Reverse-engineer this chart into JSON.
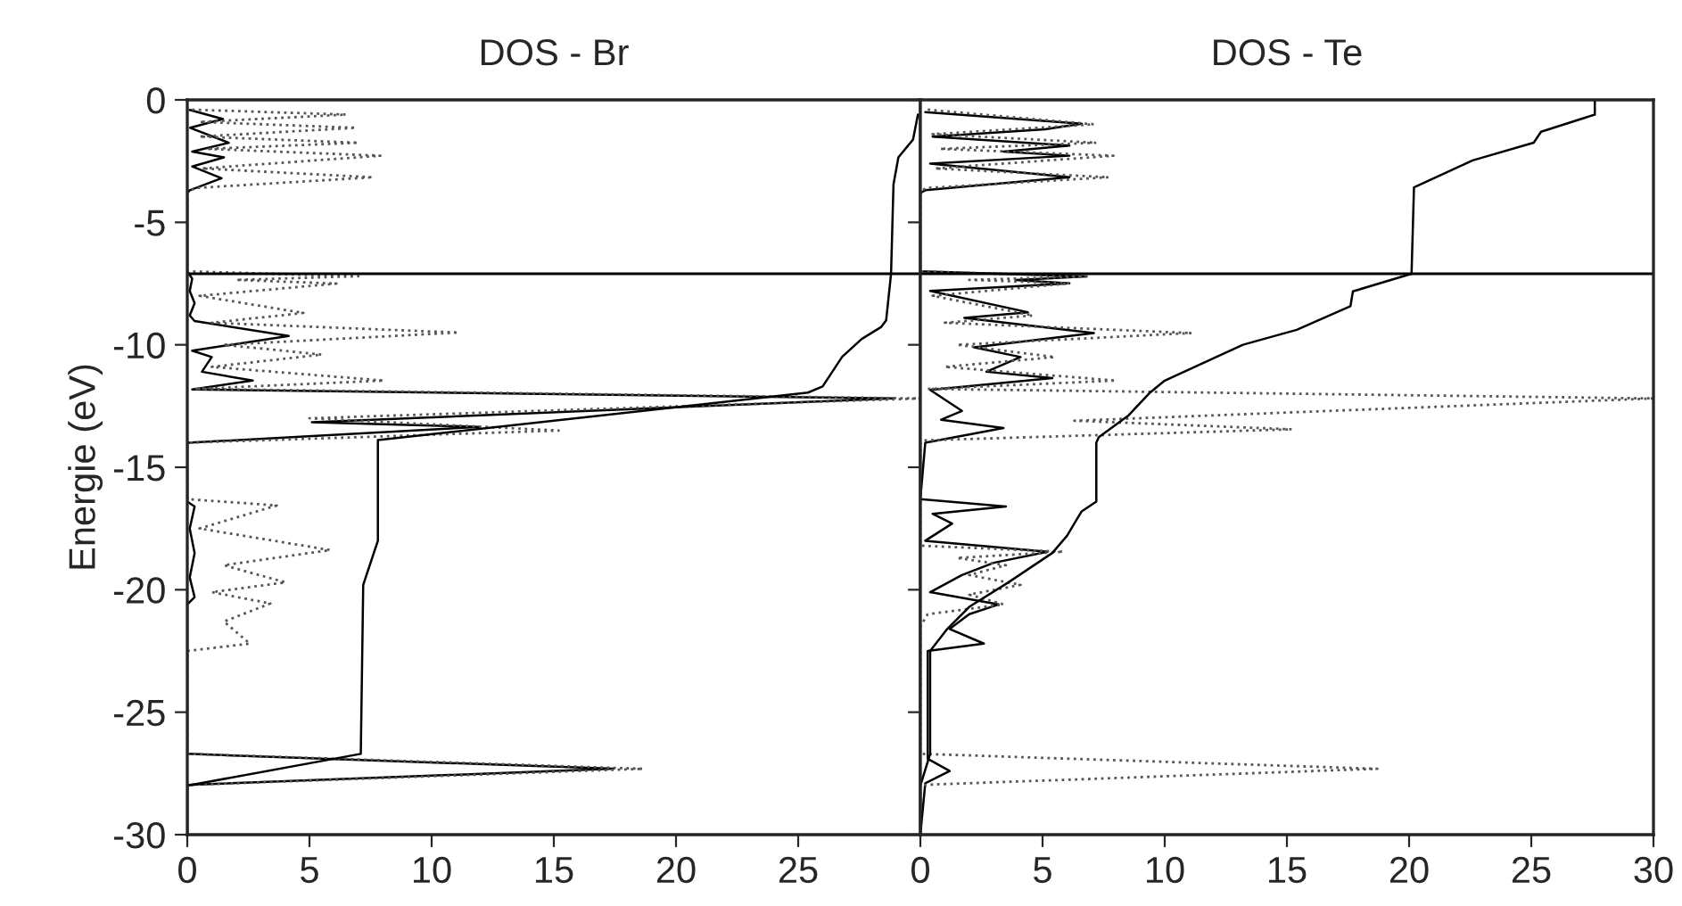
{
  "chart_data": [
    {
      "type": "line",
      "title": "DOS - Br",
      "ylabel": "Energie (eV)",
      "xlim": [
        0,
        30
      ],
      "xticks": [
        0,
        5,
        10,
        15,
        20,
        25
      ],
      "ylim": [
        -30,
        0
      ],
      "yticks": [
        0,
        -5,
        -10,
        -15,
        -20,
        -25,
        -30
      ],
      "grid": false,
      "legend": false,
      "ref_lines": [
        {
          "axis": "y",
          "value": -7.1,
          "color": "#000000"
        }
      ],
      "series": [
        {
          "color": "#000000",
          "line_style": "solid",
          "x": [
            0.1,
            1.46,
            0.12,
            1.7,
            0.2,
            1.5,
            0.2,
            1.4,
            0.1,
            0,
            0,
            0.2,
            0.1,
            0.3,
            0.1,
            0.3,
            4.15,
            0.2,
            1.0,
            0.6,
            2.68,
            0.2,
            28.9,
            5.1,
            11.95,
            0,
            0,
            0.3,
            0.1,
            0.3,
            0.1,
            0.3,
            0,
            0,
            17.44,
            0,
            0
          ],
          "values": [
            -0.41,
            -0.78,
            -1.14,
            -1.75,
            -2.11,
            -2.35,
            -2.72,
            -3.2,
            -3.69,
            -3.8,
            -7.0,
            -7.3,
            -7.8,
            -8.3,
            -8.8,
            -9.03,
            -9.64,
            -10.24,
            -10.5,
            -11.1,
            -11.46,
            -11.82,
            -12.19,
            -13.16,
            -13.35,
            -14.0,
            -16.4,
            -16.6,
            -17.5,
            -18.5,
            -19.5,
            -20.3,
            -20.6,
            -26.7,
            -27.31,
            -27.97,
            -30
          ]
        },
        {
          "color": "#555555",
          "line_style": "dotted",
          "x": [
            0.2,
            6.5,
            0.5,
            6.9,
            0.5,
            7.0,
            0.8,
            7.9,
            0.6,
            7.6,
            0.3,
            0,
            0,
            7.0,
            2.0,
            6.1,
            0.5,
            4.75,
            1.0,
            11.1,
            1.5,
            5.5,
            1.0,
            8.05,
            0.3,
            30,
            5.0,
            15.2,
            0,
            0,
            3.66,
            0.5,
            5.85,
            1.5,
            4.02,
            1.0,
            3.4,
            1.5,
            2.56,
            0,
            0,
            18.65,
            0,
            0
          ],
          "values": [
            -0.4,
            -0.6,
            -0.9,
            -1.14,
            -1.5,
            -1.75,
            -2.0,
            -2.28,
            -2.8,
            -3.16,
            -3.6,
            -3.8,
            -7.0,
            -7.2,
            -7.35,
            -7.5,
            -8.0,
            -8.7,
            -9.1,
            -9.5,
            -10.0,
            -10.4,
            -10.9,
            -11.46,
            -11.8,
            -12.19,
            -13.0,
            -13.5,
            -14.0,
            -16.3,
            -16.56,
            -17.5,
            -18.38,
            -19.0,
            -19.7,
            -20.1,
            -20.56,
            -21.3,
            -22.2,
            -22.5,
            -26.7,
            -27.31,
            -27.97,
            -30
          ]
        },
        {
          "color": "#000000",
          "line_style": "solid",
          "x": [
            29.9,
            29.7,
            29.1,
            28.9,
            28.8,
            28.6,
            28.4,
            27.6,
            26.8,
            26.0,
            25.4,
            7.8,
            7.8,
            7.2,
            7.1,
            0,
            0
          ],
          "values": [
            -0.6,
            -1.62,
            -2.35,
            -3.45,
            -7.1,
            -9.0,
            -9.27,
            -9.76,
            -10.49,
            -11.7,
            -11.95,
            -13.89,
            -18.0,
            -19.8,
            -26.7,
            -28.0,
            -30
          ]
        }
      ]
    },
    {
      "type": "line",
      "title": "DOS - Te",
      "xlim": [
        0,
        30
      ],
      "xticks": [
        0,
        5,
        10,
        15,
        20,
        25,
        30
      ],
      "ylim": [
        -30,
        0
      ],
      "yticks": [
        0,
        -5,
        -10,
        -15,
        -20,
        -25,
        -30
      ],
      "tick_labels": "x",
      "grid": false,
      "legend": false,
      "ref_lines": [
        {
          "axis": "y",
          "value": -7.1,
          "color": "#000000"
        }
      ],
      "series": [
        {
          "color": "#000000",
          "line_style": "solid",
          "x": [
            0.2,
            6.6,
            5.1,
            0.5,
            6.1,
            3.4,
            6.1,
            0.4,
            6.1,
            0.2,
            0,
            0,
            6.8,
            3.9,
            6.1,
            0.4,
            4.4,
            1.8,
            7.1,
            2.2,
            4.1,
            2.7,
            5.4,
            0.4,
            1.7,
            0.85,
            3.4,
            0.2,
            0,
            3.5,
            0.5,
            1.3,
            0.2,
            5.2,
            3.0,
            1.7,
            0.4,
            3.2,
            2.0,
            1.2,
            2.6,
            0.3,
            0.3,
            1.2,
            0.2,
            0
          ],
          "values": [
            -0.5,
            -0.97,
            -1.2,
            -1.5,
            -1.87,
            -2.11,
            -2.28,
            -2.6,
            -3.16,
            -3.69,
            -3.8,
            -7.0,
            -7.21,
            -7.35,
            -7.49,
            -7.8,
            -8.67,
            -8.9,
            -9.52,
            -10.1,
            -10.5,
            -11.1,
            -11.36,
            -11.84,
            -12.7,
            -13.06,
            -13.4,
            -14.0,
            -16.3,
            -16.6,
            -16.9,
            -17.3,
            -18.0,
            -18.45,
            -18.9,
            -19.4,
            -20.1,
            -20.6,
            -21.0,
            -21.6,
            -22.2,
            -22.5,
            -26.9,
            -27.4,
            -27.9,
            -30
          ]
        },
        {
          "color": "#555555",
          "line_style": "dotted",
          "x": [
            0.3,
            7.1,
            0.5,
            7.2,
            0.8,
            7.9,
            0.6,
            7.7,
            0.2,
            0,
            0,
            6.8,
            2.0,
            6.1,
            0.5,
            4.6,
            1.0,
            11.1,
            1.5,
            5.5,
            1.0,
            8.0,
            0.3,
            30,
            6.3,
            15.2,
            0.2,
            0,
            0,
            5.85,
            1.5,
            3.5,
            2.0,
            4.1,
            2.0,
            3.4,
            0.3,
            0,
            0,
            18.7,
            0,
            0
          ],
          "values": [
            -0.4,
            -1.0,
            -1.4,
            -1.75,
            -2.0,
            -2.28,
            -2.8,
            -3.16,
            -3.6,
            -3.8,
            -7.0,
            -7.21,
            -7.35,
            -7.49,
            -8.0,
            -8.8,
            -9.1,
            -9.52,
            -10.0,
            -10.5,
            -10.9,
            -11.46,
            -11.8,
            -12.19,
            -13.1,
            -13.45,
            -13.9,
            -14.0,
            -18.2,
            -18.45,
            -18.7,
            -19.0,
            -19.4,
            -19.8,
            -20.2,
            -20.6,
            -21.0,
            -21.5,
            -26.7,
            -27.31,
            -27.97,
            -30
          ]
        },
        {
          "color": "#000000",
          "line_style": "solid",
          "x": [
            27.6,
            27.6,
            25.4,
            25.1,
            22.6,
            20.2,
            20.1,
            17.7,
            17.6,
            15.4,
            13.2,
            10.0,
            9.4,
            8.5,
            7.3,
            7.2,
            7.2,
            6.6,
            6.0,
            5.4,
            3.6,
            2.0,
            1.1,
            0.4,
            0.4,
            0,
            0
          ],
          "values": [
            0,
            -0.6,
            -1.3,
            -1.75,
            -2.47,
            -3.57,
            -7.1,
            -7.82,
            -8.42,
            -9.39,
            -10.0,
            -11.46,
            -11.95,
            -12.9,
            -13.77,
            -14.0,
            -16.4,
            -16.8,
            -17.8,
            -18.5,
            -19.7,
            -20.7,
            -21.6,
            -22.5,
            -26.7,
            -28.0,
            -30
          ]
        }
      ]
    }
  ]
}
